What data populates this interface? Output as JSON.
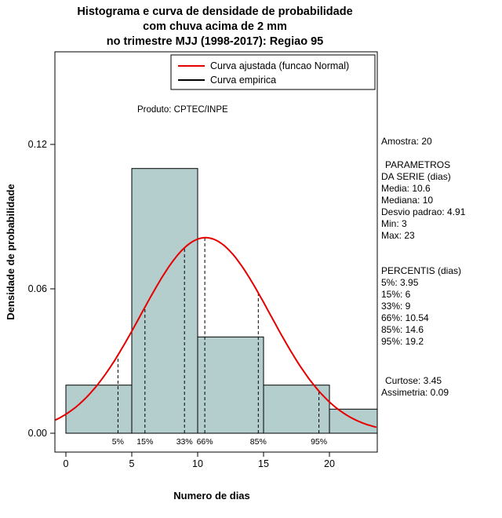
{
  "title": {
    "line1": "Histograma e curva de densidade de probabilidade",
    "line2": "com chuva acima de 2 mm",
    "line3": "no trimestre MJJ (1998-2017): Regiao 95"
  },
  "legend": {
    "fitted": "Curva ajustada (funcao Normal)",
    "empirical": "Curva empirica"
  },
  "watermark": "Produto: CPTEC/INPE",
  "axes": {
    "xlabel": "Numero de dias",
    "ylabel": "Densidade de probabilidade",
    "xticks": [
      "0",
      "5",
      "10",
      "15",
      "20"
    ],
    "yticks": [
      "0.00",
      "0.06",
      "0.12"
    ]
  },
  "stats": {
    "amostra": "Amostra: 20",
    "param_header_1": "PARAMETROS",
    "param_header_2": "DA SERIE (dias)",
    "media": "Media: 10.6",
    "mediana": "Mediana: 10",
    "desvio": "Desvio padrao: 4.91",
    "min": "Min: 3",
    "max": "Max: 23",
    "percentis_header": "PERCENTIS (dias)",
    "p5": "5%: 3.95",
    "p15": "15%: 6",
    "p33": "33%: 9",
    "p66": "66%: 10.54",
    "p85": "85%: 14.6",
    "p95": "95%: 19.2",
    "curtose": "Curtose: 3.45",
    "assimetria": "Assimetria: 0.09"
  },
  "chart_data": {
    "type": "bar",
    "subtype": "histogram-with-density-curve",
    "title": "Histograma e curva de densidade de probabilidade com chuva acima de 2 mm no trimestre MJJ (1998-2017): Regiao 95",
    "xlabel": "Numero de dias",
    "ylabel": "Densidade de probabilidade",
    "xlim": [
      -0.8,
      23.6
    ],
    "ylim": [
      0,
      0.158
    ],
    "grid": false,
    "legend_position": "top-right",
    "xticks": [
      0,
      5,
      10,
      15,
      20
    ],
    "yticks": [
      0,
      0.06,
      0.12
    ],
    "hist": {
      "bin_edges": [
        0,
        5,
        10,
        15,
        20,
        25
      ],
      "densities": [
        0.02,
        0.11,
        0.04,
        0.02,
        0.01
      ],
      "sample_size": 20,
      "fill": "#b4cdcd"
    },
    "normal_curve": {
      "mean": 10.6,
      "sd": 4.91,
      "color": "#e60000"
    },
    "percentiles": {
      "labels": [
        "5%",
        "15%",
        "33%",
        "66%",
        "85%",
        "95%"
      ],
      "x": [
        3.95,
        6,
        9,
        10.54,
        14.6,
        19.2
      ]
    }
  }
}
